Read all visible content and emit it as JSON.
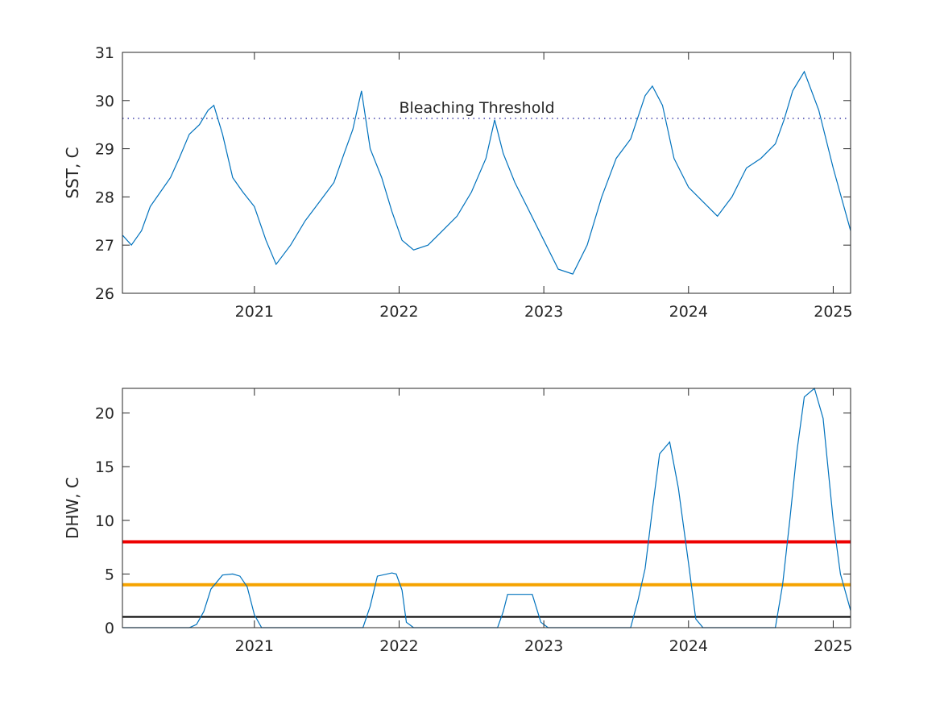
{
  "chart_data": [
    {
      "type": "line",
      "ylabel": "SST, C",
      "xlim": [
        2020.088,
        2025.12
      ],
      "ylim": [
        26,
        31
      ],
      "xticks": [
        "2021",
        "2022",
        "2023",
        "2024",
        "2025"
      ],
      "yticks": [
        "26",
        "27",
        "28",
        "29",
        "30",
        "31"
      ],
      "threshold": {
        "value": 29.63,
        "label": "Bleaching Threshold",
        "style": "dotted",
        "color": "#00008b"
      },
      "series": [
        {
          "color": "#0072bd",
          "x": [
            2020.09,
            2020.15,
            2020.22,
            2020.28,
            2020.35,
            2020.42,
            2020.48,
            2020.55,
            2020.62,
            2020.68,
            2020.72,
            2020.78,
            2020.85,
            2020.92,
            2021.0,
            2021.08,
            2021.15,
            2021.25,
            2021.35,
            2021.45,
            2021.55,
            2021.62,
            2021.68,
            2021.74,
            2021.8,
            2021.88,
            2021.95,
            2022.02,
            2022.1,
            2022.2,
            2022.3,
            2022.4,
            2022.5,
            2022.6,
            2022.66,
            2022.72,
            2022.8,
            2022.9,
            2023.0,
            2023.1,
            2023.2,
            2023.3,
            2023.4,
            2023.5,
            2023.6,
            2023.7,
            2023.75,
            2023.82,
            2023.9,
            2024.0,
            2024.1,
            2024.2,
            2024.3,
            2024.4,
            2024.5,
            2024.6,
            2024.66,
            2024.72,
            2024.8,
            2024.9,
            2025.0,
            2025.12
          ],
          "y": [
            27.2,
            27.0,
            27.3,
            27.8,
            28.1,
            28.4,
            28.8,
            29.3,
            29.5,
            29.8,
            29.9,
            29.3,
            28.4,
            28.1,
            27.8,
            27.1,
            26.6,
            27.0,
            27.5,
            27.9,
            28.3,
            28.9,
            29.4,
            30.2,
            29.0,
            28.4,
            27.7,
            27.1,
            26.9,
            27.0,
            27.3,
            27.6,
            28.1,
            28.8,
            29.6,
            28.9,
            28.3,
            27.7,
            27.1,
            26.5,
            26.4,
            27.0,
            28.0,
            28.8,
            29.2,
            30.1,
            30.3,
            29.9,
            28.8,
            28.2,
            27.9,
            27.6,
            28.0,
            28.6,
            28.8,
            29.1,
            29.6,
            30.2,
            30.6,
            29.8,
            28.6,
            27.3
          ]
        }
      ]
    },
    {
      "type": "line",
      "ylabel": "DHW, C",
      "xlim": [
        2020.088,
        2025.12
      ],
      "ylim": [
        0,
        22.3
      ],
      "xticks": [
        "2021",
        "2022",
        "2023",
        "2024",
        "2025"
      ],
      "yticks": [
        "0",
        "5",
        "10",
        "15",
        "20"
      ],
      "hlines": [
        {
          "value": 8,
          "color": "#ee0000"
        },
        {
          "value": 4,
          "color": "#f5a300"
        },
        {
          "value": 1,
          "color": "#000000"
        }
      ],
      "series": [
        {
          "color": "#0072bd",
          "x": [
            2020.09,
            2020.55,
            2020.6,
            2020.65,
            2020.7,
            2020.78,
            2020.85,
            2020.9,
            2020.95,
            2021.0,
            2021.05,
            2021.75,
            2021.8,
            2021.85,
            2021.95,
            2021.98,
            2022.02,
            2022.05,
            2022.1,
            2022.68,
            2022.72,
            2022.75,
            2022.85,
            2022.92,
            2022.98,
            2023.03,
            2023.6,
            2023.65,
            2023.7,
            2023.75,
            2023.8,
            2023.87,
            2023.93,
            2024.0,
            2024.05,
            2024.1,
            2024.6,
            2024.65,
            2024.7,
            2024.75,
            2024.8,
            2024.87,
            2024.93,
            2025.0,
            2025.05,
            2025.12
          ],
          "y": [
            0,
            0,
            0.3,
            1.5,
            3.6,
            4.9,
            5.0,
            4.8,
            3.8,
            1.2,
            0,
            0,
            2.0,
            4.8,
            5.1,
            5.0,
            3.5,
            0.5,
            0,
            0,
            1.5,
            3.1,
            3.1,
            3.1,
            0.5,
            0,
            0,
            2.5,
            5.5,
            11.0,
            16.2,
            17.3,
            13.0,
            6.0,
            0.8,
            0,
            0,
            4.0,
            10.0,
            16.5,
            21.5,
            22.3,
            19.5,
            10.0,
            5.0,
            1.6
          ]
        }
      ]
    }
  ]
}
